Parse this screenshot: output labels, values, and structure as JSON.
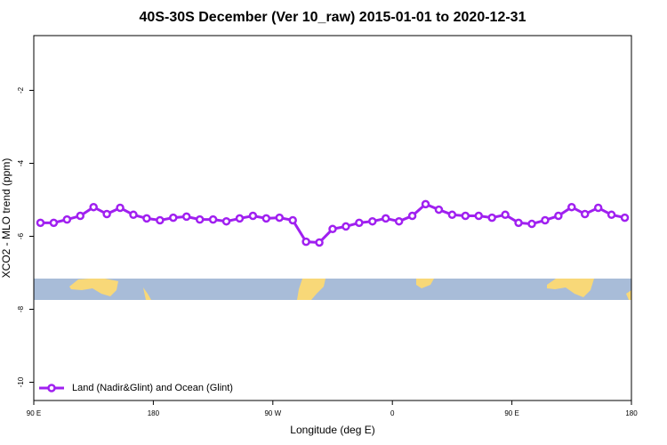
{
  "chart_data": {
    "type": "line",
    "title": "40S-30S December (Ver 10_raw)   2015-01-01 to 2020-12-31",
    "x_label": "Longitude (deg E)",
    "y_label": "XCO2 - MLO trend (ppm)",
    "x": [
      95,
      105,
      115,
      125,
      135,
      145,
      155,
      165,
      175,
      185,
      195,
      205,
      215,
      225,
      235,
      245,
      255,
      265,
      275,
      285,
      295,
      305,
      315,
      325,
      335,
      345,
      355,
      365,
      375,
      385,
      395,
      405,
      415,
      425,
      435,
      445,
      455,
      465,
      475,
      485,
      495,
      505,
      515,
      525,
      535
    ],
    "series": [
      {
        "name": "Land (Nadir&Glint) and Ocean (Glint)",
        "color": "#a020f0",
        "values": [
          -5.63,
          -5.63,
          -5.54,
          -5.44,
          -5.2,
          -5.39,
          -5.22,
          -5.41,
          -5.51,
          -5.56,
          -5.49,
          -5.46,
          -5.54,
          -5.54,
          -5.59,
          -5.51,
          -5.44,
          -5.51,
          -5.49,
          -5.56,
          -6.15,
          -6.17,
          -5.8,
          -5.73,
          -5.63,
          -5.59,
          -5.51,
          -5.59,
          -5.44,
          -5.12,
          -5.27,
          -5.41,
          -5.44,
          -5.44,
          -5.49,
          -5.41,
          -5.63,
          -5.66,
          -5.56,
          -5.44,
          -5.2,
          -5.39,
          -5.22,
          -5.41,
          -5.49
        ]
      }
    ],
    "xlim": [
      90,
      540
    ],
    "xticks": [
      {
        "value": 90,
        "label": "90 E"
      },
      180,
      {
        "value": 270,
        "label": "90 W"
      },
      {
        "value": 360,
        "label": "0"
      },
      {
        "value": 450,
        "label": "90 E"
      },
      {
        "value": 540,
        "label": "180"
      }
    ],
    "ylim": [
      -10.5,
      -0.5
    ],
    "yticks": [
      -10,
      -8,
      -6,
      -4,
      -2
    ],
    "legend": "bottom left"
  }
}
